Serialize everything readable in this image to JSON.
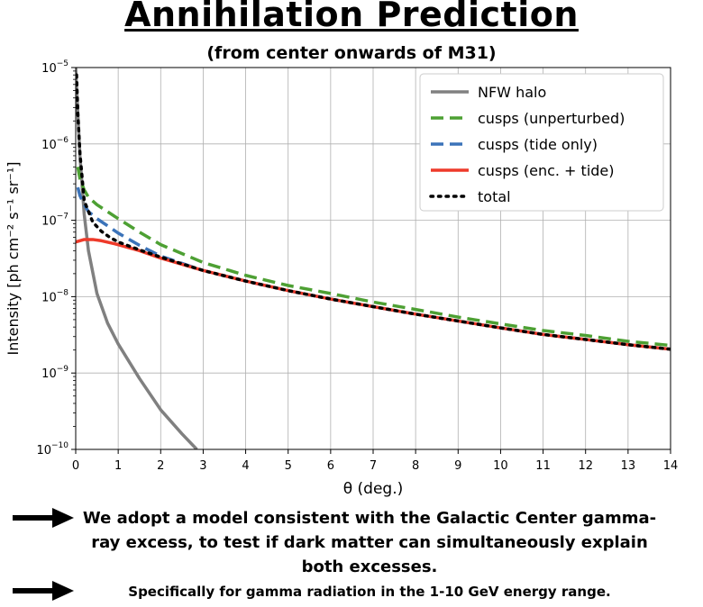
{
  "header": {
    "title": "Annihilation Prediction",
    "subtitle": "(from center onwards of M31)"
  },
  "notes": [
    "We adopt a model consistent with the Galactic Center gamma-ray excess, to test if dark matter can simultaneously explain both excesses.",
    "Specifically for gamma radiation in the 1-10 GeV energy range."
  ],
  "icons": {
    "bullet": "right-arrow-icon"
  },
  "chart_data": {
    "type": "line",
    "xlabel": "θ (deg.)",
    "ylabel": "Intensity [ph cm⁻² s⁻¹ sr⁻¹]",
    "xlim": [
      0,
      14
    ],
    "ylim": [
      1e-10,
      1e-05
    ],
    "yscale": "log",
    "grid": true,
    "legend_position": "top-right",
    "x_ticks": [
      "0",
      "1",
      "2",
      "3",
      "4",
      "5",
      "6",
      "7",
      "8",
      "9",
      "10",
      "11",
      "12",
      "13",
      "14"
    ],
    "y_ticks": [
      {
        "base": "10",
        "exp": "−5"
      },
      {
        "base": "10",
        "exp": "−6"
      },
      {
        "base": "10",
        "exp": "−7"
      },
      {
        "base": "10",
        "exp": "−8"
      },
      {
        "base": "10",
        "exp": "−9"
      },
      {
        "base": "10",
        "exp": "−10"
      }
    ],
    "series": [
      {
        "name": "NFW halo",
        "color": "#808080",
        "style": "solid",
        "x": [
          0.0,
          0.05,
          0.1,
          0.2,
          0.3,
          0.5,
          0.75,
          1.0,
          1.5,
          2.0,
          2.5,
          2.85
        ],
        "y": [
          1e-05,
          2.5e-06,
          7e-07,
          1.2e-07,
          4e-08,
          1.1e-08,
          4.5e-09,
          2.4e-09,
          8.5e-10,
          3.3e-10,
          1.6e-10,
          1e-10
        ]
      },
      {
        "name": "cusps (unperturbed)",
        "color": "#4da033",
        "style": "dashed",
        "x": [
          0.05,
          0.1,
          0.2,
          0.3,
          0.5,
          1.0,
          1.5,
          2.0,
          3.0,
          4.0,
          5.0,
          6.0,
          7.0,
          8.0,
          9.0,
          10.0,
          11.0,
          12.0,
          13.0,
          14.0
        ],
        "y": [
          5e-07,
          3.5e-07,
          2.5e-07,
          2e-07,
          1.6e-07,
          1.05e-07,
          7e-08,
          4.8e-08,
          2.8e-08,
          1.9e-08,
          1.4e-08,
          1.1e-08,
          8.5e-09,
          6.8e-09,
          5.4e-09,
          4.4e-09,
          3.6e-09,
          3.1e-09,
          2.6e-09,
          2.3e-09
        ]
      },
      {
        "name": "cusps (tide only)",
        "color": "#3b73b9",
        "style": "dashed",
        "x": [
          0.05,
          0.1,
          0.2,
          0.3,
          0.5,
          1.0,
          1.5,
          2.0,
          3.0,
          4.0,
          5.0,
          6.0,
          7.0,
          8.0,
          9.0,
          10.0,
          11.0,
          12.0,
          13.0,
          14.0
        ],
        "y": [
          2.7e-07,
          2.1e-07,
          1.6e-07,
          1.3e-07,
          1.05e-07,
          6.8e-08,
          4.7e-08,
          3.4e-08,
          2.2e-08,
          1.6e-08,
          1.2e-08,
          9.3e-09,
          7.4e-09,
          5.9e-09,
          4.8e-09,
          3.9e-09,
          3.2e-09,
          2.75e-09,
          2.35e-09,
          2.05e-09
        ]
      },
      {
        "name": "cusps (enc. + tide)",
        "color": "#ee3a2a",
        "style": "solid",
        "x": [
          0.0,
          0.1,
          0.2,
          0.4,
          0.6,
          0.8,
          1.0,
          1.5,
          2.0,
          3.0,
          4.0,
          5.0,
          6.0,
          7.0,
          8.0,
          9.0,
          10.0,
          11.0,
          12.0,
          13.0,
          14.0
        ],
        "y": [
          5.2e-08,
          5.4e-08,
          5.6e-08,
          5.6e-08,
          5.4e-08,
          5.1e-08,
          4.8e-08,
          4e-08,
          3.2e-08,
          2.2e-08,
          1.6e-08,
          1.2e-08,
          9.3e-09,
          7.4e-09,
          5.9e-09,
          4.8e-09,
          3.9e-09,
          3.2e-09,
          2.75e-09,
          2.35e-09,
          2.05e-09
        ]
      },
      {
        "name": "total",
        "color": "#000000",
        "style": "dotted",
        "x": [
          0.02,
          0.05,
          0.1,
          0.2,
          0.4,
          0.6,
          0.8,
          1.0,
          1.5,
          2.0,
          3.0,
          4.0,
          5.0,
          6.0,
          7.0,
          8.0,
          9.0,
          10.0,
          11.0,
          12.0,
          13.0,
          14.0
        ],
        "y": [
          8e-06,
          2.5e-06,
          7.5e-07,
          1.8e-07,
          9.5e-08,
          7.2e-08,
          6e-08,
          5.2e-08,
          4.1e-08,
          3.3e-08,
          2.2e-08,
          1.6e-08,
          1.2e-08,
          9.3e-09,
          7.4e-09,
          5.9e-09,
          4.8e-09,
          3.9e-09,
          3.2e-09,
          2.75e-09,
          2.35e-09,
          2.05e-09
        ]
      }
    ]
  }
}
